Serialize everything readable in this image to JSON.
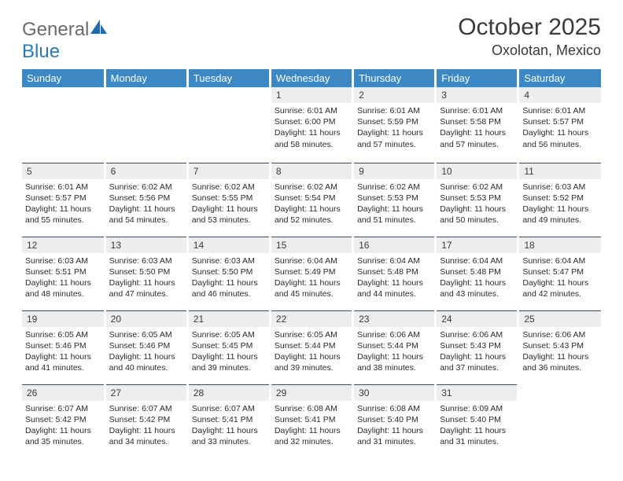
{
  "brand": {
    "part1": "General",
    "part2": "Blue"
  },
  "title": "October 2025",
  "location": "Oxolotan, Mexico",
  "colors": {
    "header_bg": "#3b88c4",
    "header_text": "#ffffff",
    "daynum_bg": "#eceef0",
    "border_top": "#3b4a5a",
    "logo_gray": "#6b6b6b",
    "logo_blue": "#2a7ab8"
  },
  "day_headers": [
    "Sunday",
    "Monday",
    "Tuesday",
    "Wednesday",
    "Thursday",
    "Friday",
    "Saturday"
  ],
  "weeks": [
    [
      null,
      null,
      null,
      {
        "n": "1",
        "sr": "6:01 AM",
        "ss": "6:00 PM",
        "dl": "11 hours and 58 minutes."
      },
      {
        "n": "2",
        "sr": "6:01 AM",
        "ss": "5:59 PM",
        "dl": "11 hours and 57 minutes."
      },
      {
        "n": "3",
        "sr": "6:01 AM",
        "ss": "5:58 PM",
        "dl": "11 hours and 57 minutes."
      },
      {
        "n": "4",
        "sr": "6:01 AM",
        "ss": "5:57 PM",
        "dl": "11 hours and 56 minutes."
      }
    ],
    [
      {
        "n": "5",
        "sr": "6:01 AM",
        "ss": "5:57 PM",
        "dl": "11 hours and 55 minutes."
      },
      {
        "n": "6",
        "sr": "6:02 AM",
        "ss": "5:56 PM",
        "dl": "11 hours and 54 minutes."
      },
      {
        "n": "7",
        "sr": "6:02 AM",
        "ss": "5:55 PM",
        "dl": "11 hours and 53 minutes."
      },
      {
        "n": "8",
        "sr": "6:02 AM",
        "ss": "5:54 PM",
        "dl": "11 hours and 52 minutes."
      },
      {
        "n": "9",
        "sr": "6:02 AM",
        "ss": "5:53 PM",
        "dl": "11 hours and 51 minutes."
      },
      {
        "n": "10",
        "sr": "6:02 AM",
        "ss": "5:53 PM",
        "dl": "11 hours and 50 minutes."
      },
      {
        "n": "11",
        "sr": "6:03 AM",
        "ss": "5:52 PM",
        "dl": "11 hours and 49 minutes."
      }
    ],
    [
      {
        "n": "12",
        "sr": "6:03 AM",
        "ss": "5:51 PM",
        "dl": "11 hours and 48 minutes."
      },
      {
        "n": "13",
        "sr": "6:03 AM",
        "ss": "5:50 PM",
        "dl": "11 hours and 47 minutes."
      },
      {
        "n": "14",
        "sr": "6:03 AM",
        "ss": "5:50 PM",
        "dl": "11 hours and 46 minutes."
      },
      {
        "n": "15",
        "sr": "6:04 AM",
        "ss": "5:49 PM",
        "dl": "11 hours and 45 minutes."
      },
      {
        "n": "16",
        "sr": "6:04 AM",
        "ss": "5:48 PM",
        "dl": "11 hours and 44 minutes."
      },
      {
        "n": "17",
        "sr": "6:04 AM",
        "ss": "5:48 PM",
        "dl": "11 hours and 43 minutes."
      },
      {
        "n": "18",
        "sr": "6:04 AM",
        "ss": "5:47 PM",
        "dl": "11 hours and 42 minutes."
      }
    ],
    [
      {
        "n": "19",
        "sr": "6:05 AM",
        "ss": "5:46 PM",
        "dl": "11 hours and 41 minutes."
      },
      {
        "n": "20",
        "sr": "6:05 AM",
        "ss": "5:46 PM",
        "dl": "11 hours and 40 minutes."
      },
      {
        "n": "21",
        "sr": "6:05 AM",
        "ss": "5:45 PM",
        "dl": "11 hours and 39 minutes."
      },
      {
        "n": "22",
        "sr": "6:05 AM",
        "ss": "5:44 PM",
        "dl": "11 hours and 39 minutes."
      },
      {
        "n": "23",
        "sr": "6:06 AM",
        "ss": "5:44 PM",
        "dl": "11 hours and 38 minutes."
      },
      {
        "n": "24",
        "sr": "6:06 AM",
        "ss": "5:43 PM",
        "dl": "11 hours and 37 minutes."
      },
      {
        "n": "25",
        "sr": "6:06 AM",
        "ss": "5:43 PM",
        "dl": "11 hours and 36 minutes."
      }
    ],
    [
      {
        "n": "26",
        "sr": "6:07 AM",
        "ss": "5:42 PM",
        "dl": "11 hours and 35 minutes."
      },
      {
        "n": "27",
        "sr": "6:07 AM",
        "ss": "5:42 PM",
        "dl": "11 hours and 34 minutes."
      },
      {
        "n": "28",
        "sr": "6:07 AM",
        "ss": "5:41 PM",
        "dl": "11 hours and 33 minutes."
      },
      {
        "n": "29",
        "sr": "6:08 AM",
        "ss": "5:41 PM",
        "dl": "11 hours and 32 minutes."
      },
      {
        "n": "30",
        "sr": "6:08 AM",
        "ss": "5:40 PM",
        "dl": "11 hours and 31 minutes."
      },
      {
        "n": "31",
        "sr": "6:09 AM",
        "ss": "5:40 PM",
        "dl": "11 hours and 31 minutes."
      },
      null
    ]
  ],
  "labels": {
    "sunrise": "Sunrise: ",
    "sunset": "Sunset: ",
    "daylight": "Daylight: "
  }
}
